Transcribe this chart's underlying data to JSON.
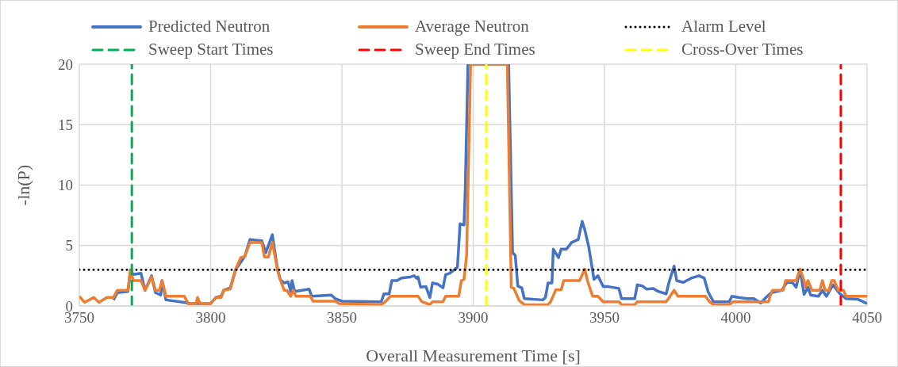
{
  "chart_data": {
    "type": "line",
    "xlabel": "Overall Measurement Time [s]",
    "ylabel": "-ln(P)",
    "xlim": [
      3750,
      4050
    ],
    "xticks": [
      3750,
      3800,
      3850,
      3900,
      3950,
      4000,
      4050
    ],
    "ylim": [
      0,
      20
    ],
    "yticks": [
      0,
      5,
      10,
      15,
      20
    ],
    "grid": true,
    "legend": "top",
    "marker": "none",
    "line_style": "solid",
    "series": [
      {
        "name": "Predicted Neutron",
        "color": "#4472c4",
        "x": [
          3763,
          3764.5,
          3768.5,
          3769.5,
          3770.5,
          3773.5,
          3775,
          3777.5,
          3779,
          3781,
          3781.5,
          3783,
          3790,
          3791.5,
          3800,
          3802,
          3804,
          3805,
          3807.5,
          3809.5,
          3813,
          3815,
          3819.5,
          3821,
          3823.5,
          3825.5,
          3826.5,
          3828,
          3829.5,
          3830.5,
          3831,
          3832,
          3837.5,
          3838.5,
          3846,
          3847.5,
          3850,
          3865,
          3866,
          3868,
          3869,
          3871,
          3872.5,
          3876,
          3877.5,
          3878.5,
          3879,
          3880,
          3882,
          3883.5,
          3884.5,
          3886.5,
          3888.5,
          3889.5,
          3891,
          3894,
          3895,
          3896.5,
          3897,
          3898,
          3913.5,
          3915,
          3916,
          3917,
          3918.5,
          3919.5,
          3926.5,
          3927.5,
          3928.5,
          3930,
          3930.5,
          3932.5,
          3933.5,
          3935.5,
          3937.5,
          3940,
          3941.5,
          3942.5,
          3944,
          3946,
          3947.5,
          3949.5,
          3951.5,
          3955.5,
          3956.5,
          3961.5,
          3962.5,
          3964.5,
          3966,
          3968.5,
          3970.5,
          3973.5,
          3974.5,
          3976.5,
          3977.5,
          3980,
          3983,
          3986,
          3988,
          3989.5,
          3991.5,
          3997.5,
          3998.5,
          4001,
          4004.5,
          4007,
          4009.5,
          4011.5,
          4013.5,
          4017.5,
          4019.5,
          4021.5,
          4023,
          4024.5,
          4026,
          4027.5,
          4028.5,
          4031.5,
          4033,
          4034.5,
          4037,
          4039.5,
          4042,
          4046.5,
          4050
        ],
        "values": [
          0.5,
          1.1,
          1.2,
          3.0,
          2.6,
          2.7,
          1.3,
          2.5,
          1.1,
          0.9,
          2.1,
          0.5,
          0.3,
          0.2,
          0.2,
          0.7,
          0.8,
          1.3,
          1.5,
          3.0,
          4.1,
          5.5,
          5.4,
          4.4,
          5.9,
          3.0,
          2.2,
          1.9,
          2.0,
          1.2,
          2.1,
          1.2,
          1.4,
          0.8,
          0.9,
          0.6,
          0.4,
          0.35,
          1.0,
          1.0,
          2.1,
          2.1,
          2.3,
          2.4,
          2.5,
          2.3,
          2.4,
          1.55,
          1.6,
          0.7,
          1.9,
          1.8,
          1.5,
          2.6,
          2.7,
          3.2,
          6.8,
          6.7,
          9.8,
          20,
          20,
          4.4,
          4.2,
          1.65,
          1.5,
          0.6,
          0.5,
          0.7,
          1.9,
          1.9,
          4.7,
          4.0,
          4.7,
          4.7,
          5.25,
          5.5,
          7.0,
          6.3,
          4.9,
          2.2,
          2.5,
          1.6,
          1.6,
          1.45,
          0.6,
          0.6,
          1.75,
          1.65,
          1.4,
          1.45,
          1.2,
          1.0,
          1.9,
          3.3,
          2.1,
          1.95,
          2.3,
          2.5,
          2.3,
          1.15,
          0.35,
          0.35,
          0.8,
          0.7,
          0.6,
          0.6,
          0.25,
          0.7,
          1.1,
          1.3,
          1.95,
          1.95,
          1.55,
          3.0,
          0.95,
          1.55,
          0.9,
          0.8,
          1.3,
          0.8,
          1.75,
          1.05,
          0.6,
          0.55,
          0.2
        ]
      },
      {
        "name": "Average Neutron",
        "color": "#ed7d31",
        "x": [
          3750,
          3752,
          3755.5,
          3757.5,
          3760.5,
          3763,
          3764.5,
          3768.5,
          3769.5,
          3770.5,
          3773.5,
          3775,
          3777.5,
          3779,
          3780.5,
          3781.5,
          3783,
          3790,
          3791.5,
          3794.5,
          3795,
          3796,
          3800,
          3802,
          3804,
          3805,
          3807.5,
          3809.5,
          3811.5,
          3813,
          3815,
          3819.5,
          3820.5,
          3822,
          3823.5,
          3825.5,
          3826.5,
          3828,
          3829,
          3830.5,
          3831.5,
          3832.5,
          3838,
          3839,
          3847.5,
          3849,
          3865,
          3866.5,
          3868.5,
          3879,
          3880.5,
          3883.5,
          3884.5,
          3888.5,
          3889.5,
          3894.5,
          3895.5,
          3896.5,
          3897.5,
          3899,
          3913,
          3914.5,
          3915.5,
          3917.5,
          3919.5,
          3928.5,
          3929.5,
          3931.5,
          3933.5,
          3934.5,
          3940.5,
          3942.5,
          3943.5,
          3945.5,
          3947.5,
          3949.5,
          3955.5,
          3956.5,
          3961.5,
          3962.5,
          3973.5,
          3975,
          3976.5,
          3978,
          3988.5,
          3990,
          3991.5,
          3997.5,
          3999,
          4012.5,
          4013,
          4014,
          4018,
          4019,
          4023,
          4024.5,
          4026,
          4026.5,
          4027.5,
          4029,
          4032,
          4033,
          4034,
          4035.5,
          4036.5,
          4037.5,
          4039,
          4041,
          4042,
          4050
        ],
        "values": [
          0.8,
          0.3,
          0.7,
          0.3,
          0.7,
          0.7,
          1.3,
          1.3,
          3.0,
          2.1,
          2.1,
          1.3,
          2.4,
          1.3,
          1.3,
          2.1,
          0.8,
          0.8,
          0.2,
          0.2,
          0.7,
          0.2,
          0.2,
          0.7,
          0.7,
          1.3,
          1.4,
          3.0,
          4.0,
          4.1,
          5.25,
          5.25,
          4.05,
          4.05,
          5.25,
          3.0,
          2.2,
          1.3,
          1.3,
          0.8,
          1.3,
          0.8,
          0.8,
          0.4,
          0.4,
          0.2,
          0.1,
          0.35,
          0.8,
          0.8,
          0.35,
          0.1,
          0.35,
          0.35,
          0.8,
          0.8,
          2.1,
          2.2,
          4.2,
          20,
          20,
          1.55,
          1.45,
          0.45,
          0.1,
          0.1,
          0.35,
          1.35,
          1.35,
          2.1,
          2.1,
          3.05,
          2.1,
          0.8,
          0.8,
          0.35,
          0.35,
          0.1,
          0.1,
          0.35,
          0.35,
          0.8,
          1.3,
          0.8,
          0.8,
          0.35,
          0.1,
          0.1,
          0.35,
          0.35,
          0.8,
          1.3,
          1.3,
          2.1,
          2.1,
          3.05,
          2.1,
          1.55,
          2.1,
          1.3,
          1.3,
          2.1,
          1.3,
          1.3,
          2.1,
          2.1,
          1.3,
          1.3,
          0.8,
          0.8
        ]
      }
    ],
    "ref_lines": [
      {
        "axis": "y",
        "value": 3,
        "label": "Alarm Level",
        "color": "#000000",
        "line_style": "dotted"
      },
      {
        "axis": "x",
        "value": 3770,
        "label": "Sweep Start Times",
        "color": "#00b050",
        "line_style": "dashed"
      },
      {
        "axis": "x",
        "value": 4040,
        "label": "Sweep End Times",
        "color": "#ff0000",
        "line_style": "dashed"
      },
      {
        "axis": "x",
        "value": 3905,
        "label": "Cross-Over Times",
        "color": "#ffff00",
        "line_style": "dashed"
      }
    ]
  }
}
